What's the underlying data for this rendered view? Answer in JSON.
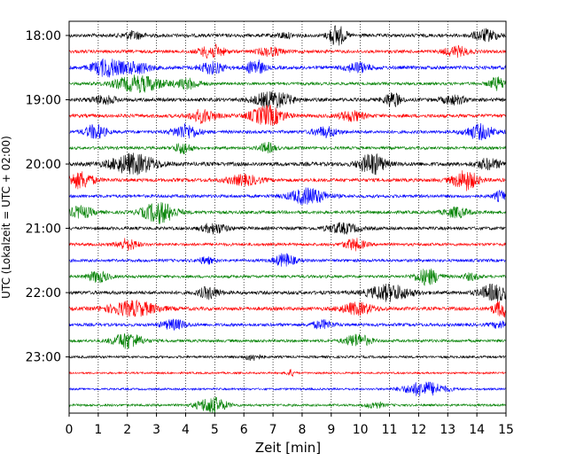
{
  "chart_data": {
    "type": "line",
    "title": "",
    "xlabel": "Zeit  [min]",
    "ylabel": "UTC (Lokalzeit = UTC + 02:00)",
    "xlim": [
      0,
      15
    ],
    "x_ticks": [
      "0",
      "1",
      "2",
      "3",
      "4",
      "5",
      "6",
      "7",
      "8",
      "9",
      "10",
      "11",
      "12",
      "13",
      "14",
      "15"
    ],
    "y_tick_labels": [
      "18:00",
      "19:00",
      "20:00",
      "21:00",
      "22:00",
      "23:00"
    ],
    "y_tick_rows": [
      0,
      4,
      8,
      12,
      16,
      20
    ],
    "grid": "vertical dotted at each minute",
    "row_interval_minutes": 15,
    "start_time": "17:45",
    "colors": [
      "#000000",
      "#ff0000",
      "#0000ff",
      "#008000"
    ],
    "rows": [
      {
        "amp": 0.22,
        "bursts": [
          [
            2.2,
            0.25,
            0.45
          ],
          [
            7.4,
            0.2,
            0.3
          ],
          [
            9.2,
            0.2,
            1.3
          ],
          [
            14.3,
            0.3,
            0.7
          ]
        ]
      },
      {
        "amp": 0.2,
        "bursts": [
          [
            4.9,
            0.3,
            0.8
          ],
          [
            6.9,
            0.3,
            0.5
          ],
          [
            13.3,
            0.3,
            0.6
          ]
        ]
      },
      {
        "amp": 0.22,
        "bursts": [
          [
            1.3,
            0.35,
            1.1
          ],
          [
            2.3,
            0.35,
            0.7
          ],
          [
            4.9,
            0.3,
            0.7
          ],
          [
            6.4,
            0.2,
            1.0
          ],
          [
            9.9,
            0.3,
            0.6
          ]
        ]
      },
      {
        "amp": 0.18,
        "bursts": [
          [
            2.4,
            0.6,
            1.0
          ],
          [
            4.1,
            0.3,
            0.6
          ],
          [
            14.7,
            0.2,
            0.8
          ]
        ]
      },
      {
        "amp": 0.22,
        "bursts": [
          [
            1.2,
            0.3,
            0.5
          ],
          [
            7.0,
            0.45,
            1.0
          ],
          [
            11.1,
            0.2,
            0.9
          ],
          [
            13.2,
            0.3,
            0.5
          ]
        ]
      },
      {
        "amp": 0.22,
        "bursts": [
          [
            4.6,
            0.3,
            0.8
          ],
          [
            6.8,
            0.4,
            1.2
          ],
          [
            9.7,
            0.3,
            0.6
          ]
        ]
      },
      {
        "amp": 0.2,
        "bursts": [
          [
            0.9,
            0.25,
            0.9
          ],
          [
            4.0,
            0.3,
            0.9
          ],
          [
            8.8,
            0.3,
            0.6
          ],
          [
            14.1,
            0.35,
            0.9
          ]
        ]
      },
      {
        "amp": 0.18,
        "bursts": [
          [
            3.9,
            0.2,
            0.7
          ],
          [
            6.8,
            0.2,
            0.6
          ]
        ]
      },
      {
        "amp": 0.25,
        "bursts": [
          [
            2.2,
            0.55,
            1.2
          ],
          [
            10.4,
            0.3,
            1.3
          ],
          [
            14.4,
            0.3,
            0.6
          ]
        ]
      },
      {
        "amp": 0.22,
        "bursts": [
          [
            0.4,
            0.3,
            1.0
          ],
          [
            6.0,
            0.4,
            0.6
          ],
          [
            13.6,
            0.3,
            1.2
          ]
        ]
      },
      {
        "amp": 0.2,
        "bursts": [
          [
            8.2,
            0.45,
            1.0
          ],
          [
            14.8,
            0.15,
            0.6
          ]
        ]
      },
      {
        "amp": 0.2,
        "bursts": [
          [
            0.4,
            0.3,
            0.7
          ],
          [
            3.1,
            0.4,
            1.3
          ],
          [
            13.3,
            0.3,
            0.6
          ]
        ]
      },
      {
        "amp": 0.2,
        "bursts": [
          [
            5.0,
            0.3,
            0.6
          ],
          [
            9.4,
            0.4,
            0.6
          ]
        ]
      },
      {
        "amp": 0.18,
        "bursts": [
          [
            2.0,
            0.25,
            0.7
          ],
          [
            9.8,
            0.25,
            0.7
          ]
        ]
      },
      {
        "amp": 0.18,
        "bursts": [
          [
            7.4,
            0.25,
            0.8
          ],
          [
            4.7,
            0.2,
            0.4
          ]
        ]
      },
      {
        "amp": 0.18,
        "bursts": [
          [
            1.0,
            0.25,
            0.7
          ],
          [
            12.3,
            0.3,
            1.0
          ],
          [
            13.8,
            0.2,
            0.4
          ]
        ]
      },
      {
        "amp": 0.22,
        "bursts": [
          [
            4.8,
            0.25,
            0.7
          ],
          [
            11.0,
            0.5,
            1.0
          ],
          [
            14.6,
            0.35,
            1.0
          ]
        ]
      },
      {
        "amp": 0.22,
        "bursts": [
          [
            2.2,
            0.6,
            0.9
          ],
          [
            9.9,
            0.4,
            0.7
          ],
          [
            14.9,
            0.25,
            1.0
          ]
        ]
      },
      {
        "amp": 0.2,
        "bursts": [
          [
            3.6,
            0.3,
            0.6
          ],
          [
            8.7,
            0.25,
            0.5
          ],
          [
            14.8,
            0.2,
            0.4
          ]
        ]
      },
      {
        "amp": 0.18,
        "bursts": [
          [
            2.0,
            0.35,
            1.0
          ],
          [
            9.9,
            0.3,
            0.8
          ]
        ]
      },
      {
        "amp": 0.15,
        "bursts": [
          [
            6.3,
            0.2,
            0.4
          ]
        ]
      },
      {
        "amp": 0.12,
        "bursts": [
          [
            7.6,
            0.1,
            0.4
          ]
        ]
      },
      {
        "amp": 0.13,
        "bursts": [
          [
            12.2,
            0.5,
            0.9
          ]
        ]
      },
      {
        "amp": 0.15,
        "bursts": [
          [
            4.9,
            0.35,
            1.0
          ],
          [
            10.5,
            0.2,
            0.4
          ]
        ]
      }
    ]
  }
}
